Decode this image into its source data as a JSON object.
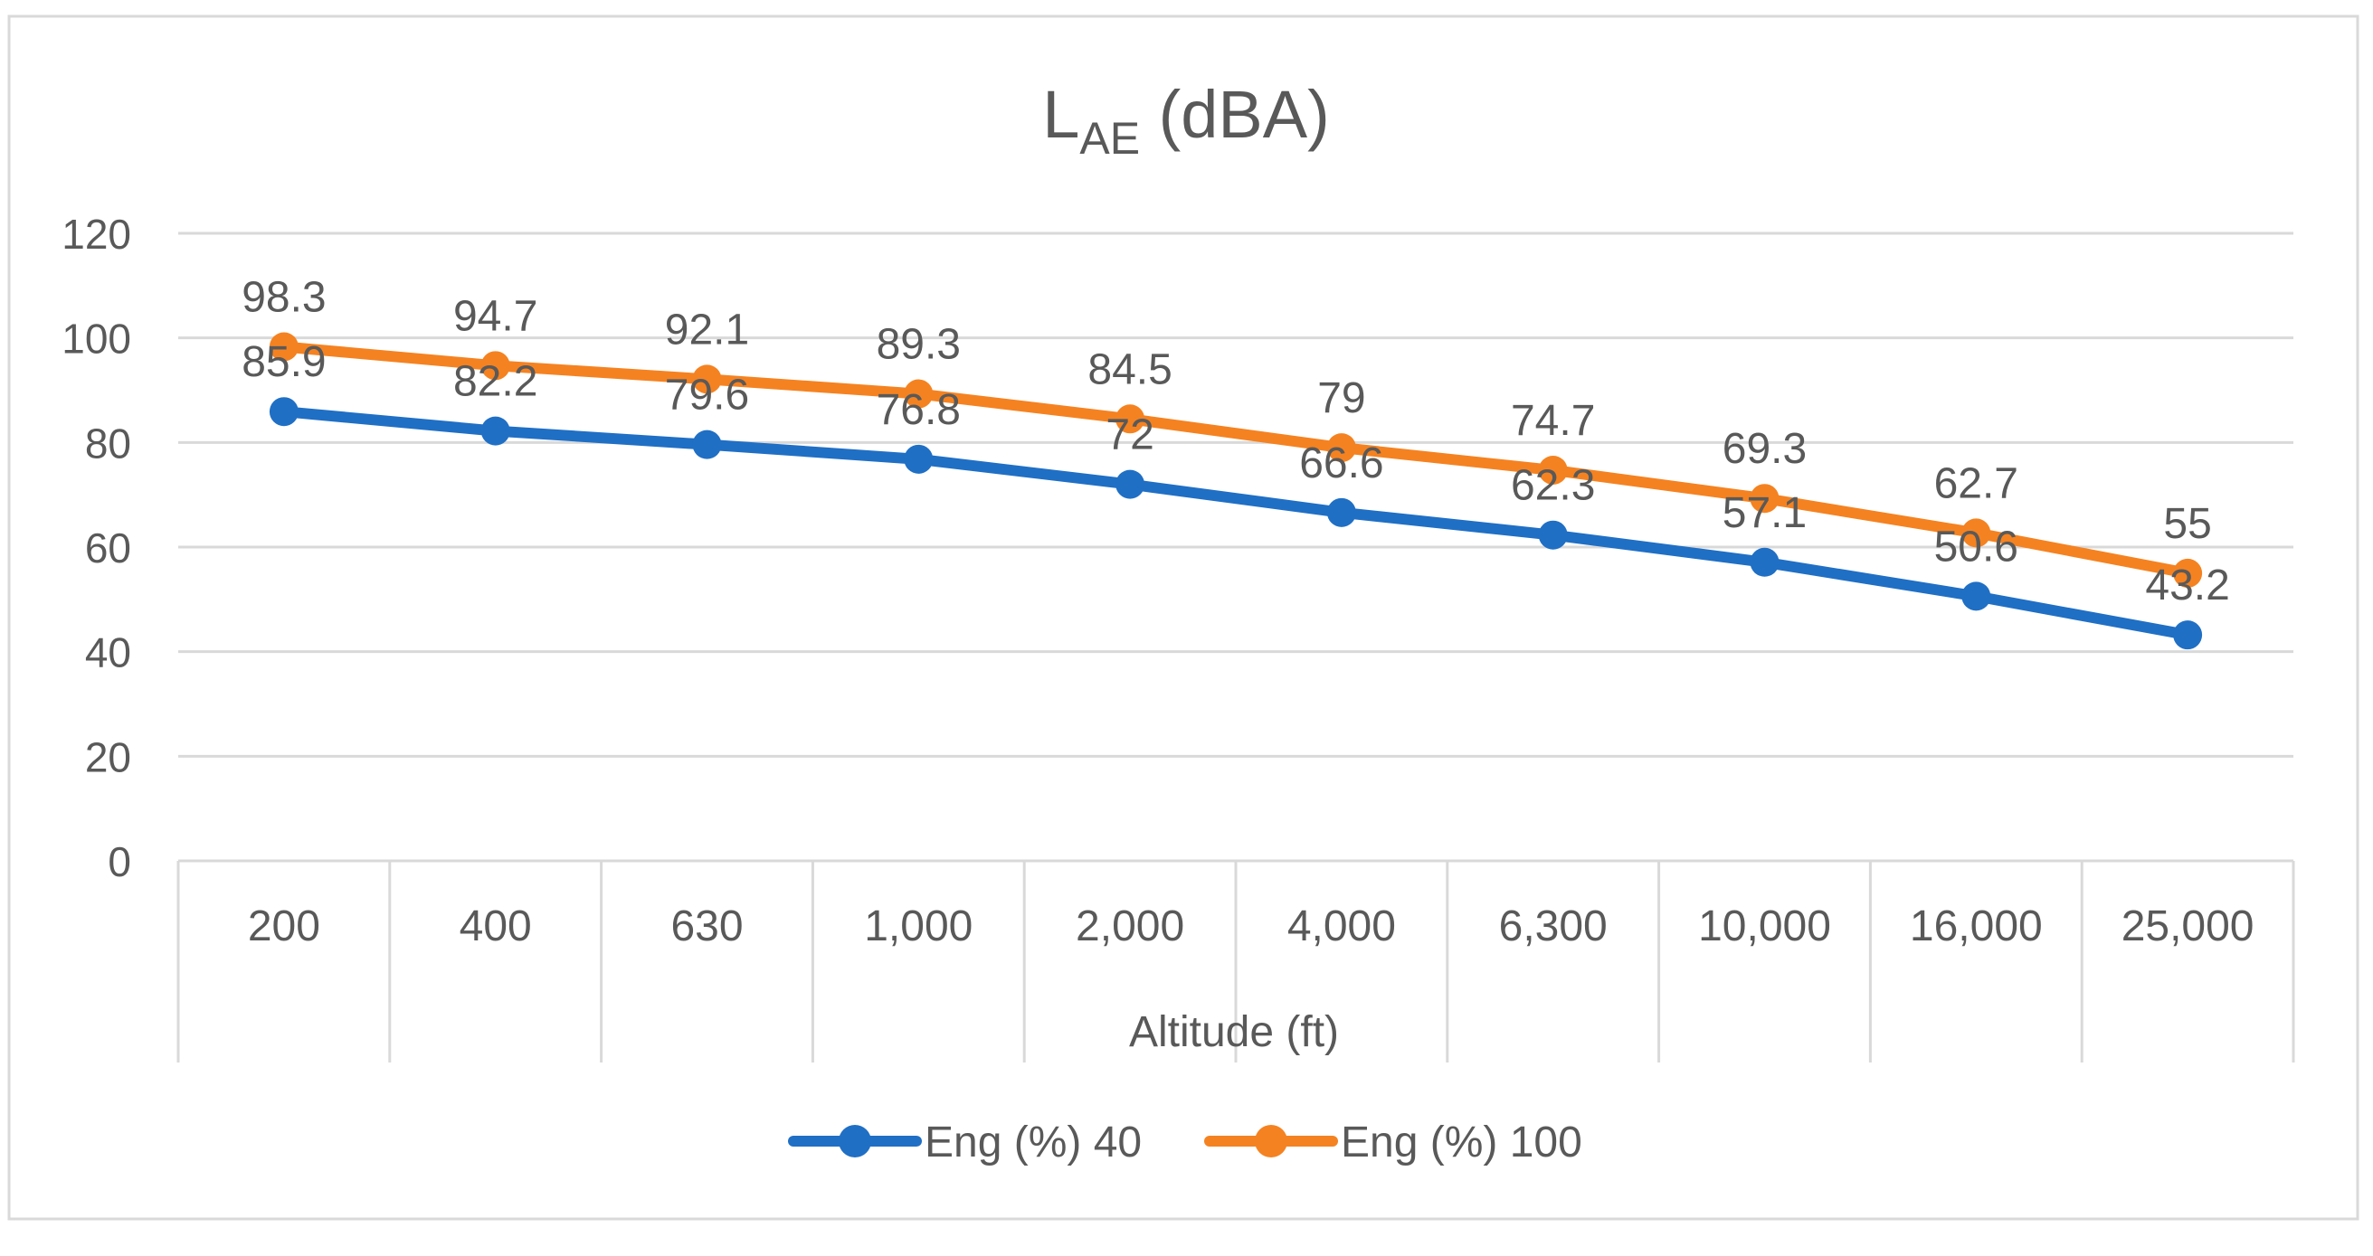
{
  "chart_data": {
    "type": "line",
    "title_main": "L",
    "title_sub": "AE",
    "title_rest": " (dBA)",
    "xlabel": "Altitude (ft)",
    "ylabel": "",
    "categories": [
      "200",
      "400",
      "630",
      "1,000",
      "2,000",
      "4,000",
      "6,300",
      "10,000",
      "16,000",
      "25,000"
    ],
    "ylim": [
      0,
      120
    ],
    "yticks": [
      0,
      20,
      40,
      60,
      80,
      100,
      120
    ],
    "grid": true,
    "legend_position": "bottom",
    "series": [
      {
        "name": "Eng (%) 40",
        "color": "#1F6FC5",
        "values": [
          85.9,
          82.2,
          79.6,
          76.8,
          72,
          66.6,
          62.3,
          57.1,
          50.6,
          43.2
        ]
      },
      {
        "name": "Eng (%) 100",
        "color": "#F58220",
        "values": [
          98.3,
          94.7,
          92.1,
          89.3,
          84.5,
          79,
          74.7,
          69.3,
          62.7,
          55
        ]
      }
    ]
  },
  "colors": {
    "grid": "#D9D9D9",
    "axis_text": "#595959",
    "frame": "#D9D9D9"
  }
}
